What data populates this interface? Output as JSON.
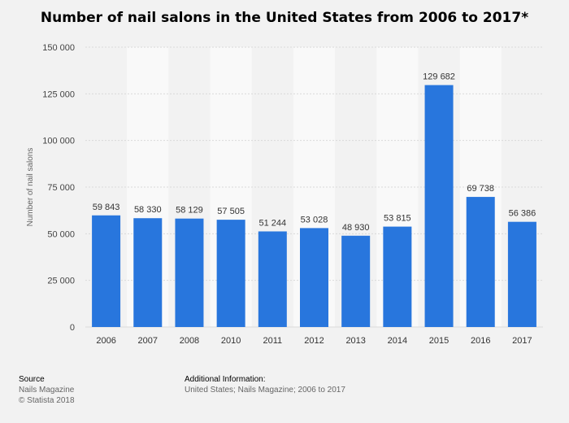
{
  "chart_data": {
    "type": "bar",
    "title": "Number of nail salons in the United States from 2006 to 2017*",
    "xlabel": "",
    "ylabel": "Number of nail salons",
    "categories": [
      "2006",
      "2007",
      "2008",
      "2010",
      "2011",
      "2012",
      "2013",
      "2014",
      "2015",
      "2016",
      "2017"
    ],
    "values": [
      59843,
      58330,
      58129,
      57505,
      51244,
      53028,
      48930,
      53815,
      129682,
      69738,
      56386
    ],
    "value_labels": [
      "59 843",
      "58 330",
      "58 129",
      "57 505",
      "51 244",
      "53 028",
      "48 930",
      "53 815",
      "129 682",
      "69 738",
      "56 386"
    ],
    "ylim": [
      0,
      150000
    ],
    "yticks": [
      0,
      25000,
      50000,
      75000,
      100000,
      125000,
      150000
    ],
    "ytick_labels": [
      "0",
      "25 000",
      "50 000",
      "75 000",
      "100 000",
      "125 000",
      "150 000"
    ],
    "bar_color": "#2876dd",
    "grid": true,
    "legend": "none"
  },
  "footer": {
    "source_heading": "Source",
    "source_lines": [
      "Nails Magazine",
      "© Statista 2018"
    ],
    "info_heading": "Additional Information:",
    "info_text": "United States; Nails Magazine; 2006 to 2017"
  }
}
